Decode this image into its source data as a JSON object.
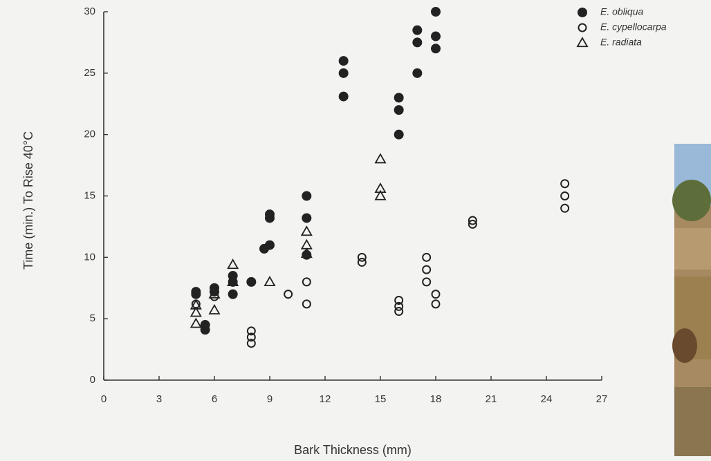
{
  "chart_data": {
    "type": "scatter",
    "x_label": "Bark Thickness (mm)",
    "y_label": "Time (min.) To Rise 40°C",
    "xlim": [
      0,
      27
    ],
    "xticks": [
      0,
      3,
      6,
      9,
      12,
      15,
      18,
      21,
      24,
      27
    ],
    "ylim": [
      0,
      30
    ],
    "yticks": [
      0,
      5,
      10,
      15,
      20,
      25,
      30
    ],
    "grid": false,
    "legend": "upper right",
    "series": [
      {
        "name": "E. obliqua",
        "marker": "filled-circle",
        "color": "#222222",
        "x": [
          5,
          5,
          5.5,
          5.5,
          6,
          6,
          7,
          7,
          7,
          8,
          8.7,
          9,
          9,
          9,
          11,
          11,
          11,
          13,
          13,
          13,
          16,
          16,
          16,
          17,
          17,
          17,
          18,
          18,
          18
        ],
        "values": [
          7.2,
          7.0,
          4.5,
          4.1,
          7.5,
          7.2,
          8.5,
          8.0,
          7.0,
          8.0,
          10.7,
          11.0,
          13.5,
          13.2,
          15.0,
          13.2,
          10.2,
          26.0,
          25.0,
          23.1,
          23.0,
          22.0,
          20.0,
          28.5,
          27.5,
          25.0,
          30.0,
          28.0,
          27.0
        ]
      },
      {
        "name": "E. cypellocarpa",
        "marker": "open-circle",
        "color": "#222222",
        "x": [
          5,
          6,
          8,
          8,
          8,
          10,
          11,
          11,
          14,
          14,
          16,
          16,
          16,
          17.5,
          17.5,
          17.5,
          18,
          18,
          20,
          20,
          25,
          25,
          25
        ],
        "values": [
          6.2,
          6.8,
          4.0,
          3.5,
          3.0,
          7.0,
          8.0,
          6.2,
          10.0,
          9.6,
          6.5,
          6.0,
          5.6,
          10.0,
          9.0,
          8.0,
          7.0,
          6.2,
          13.0,
          12.7,
          16.0,
          15.0,
          14.0
        ]
      },
      {
        "name": "E. radiata",
        "marker": "open-triangle",
        "color": "#222222",
        "x": [
          5,
          5,
          5,
          6,
          6,
          7,
          7,
          9,
          11,
          11,
          11,
          15,
          15,
          15
        ],
        "values": [
          5.5,
          4.6,
          6.1,
          5.7,
          7.0,
          9.4,
          8.0,
          8.0,
          12.1,
          11.0,
          10.3,
          18.0,
          15.6,
          15.0
        ]
      }
    ]
  }
}
